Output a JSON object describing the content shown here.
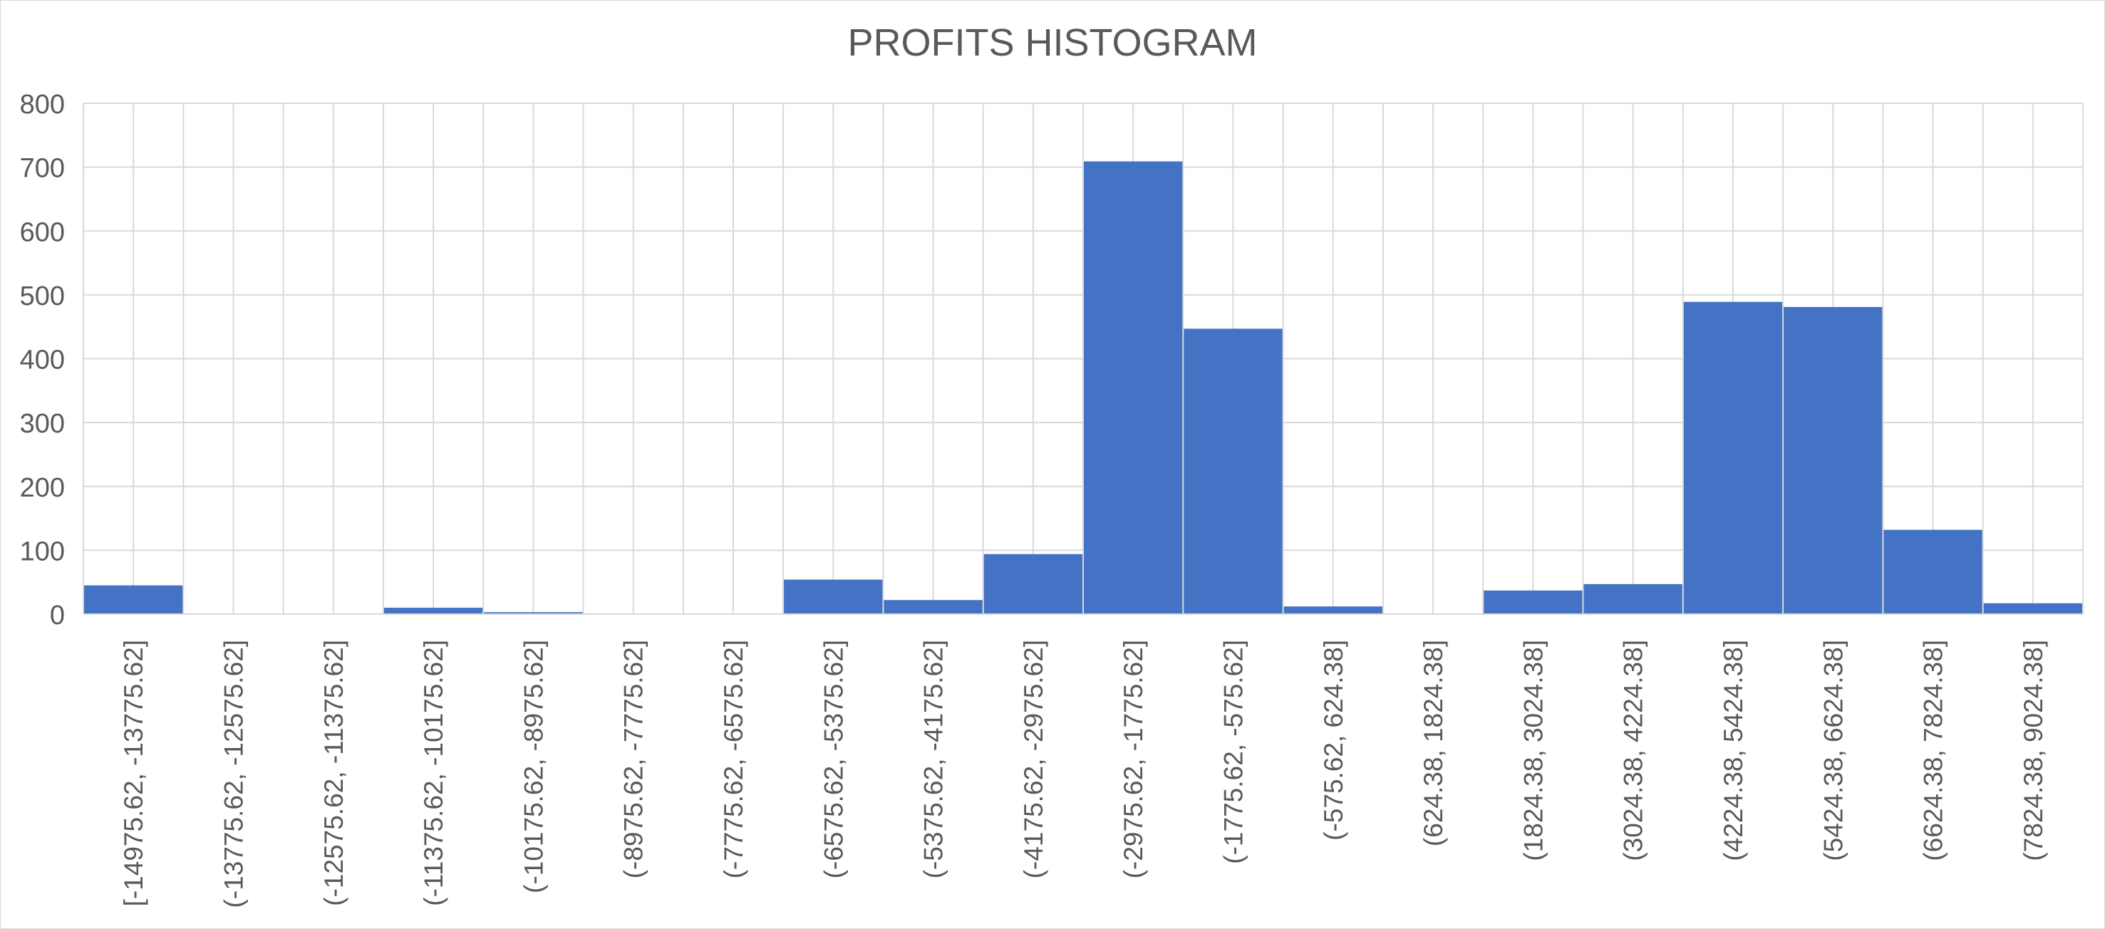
{
  "chart_data": {
    "type": "bar",
    "title": "PROFITS HISTOGRAM",
    "xlabel": "",
    "ylabel": "",
    "ylim": [
      0,
      800
    ],
    "yticks": [
      0,
      100,
      200,
      300,
      400,
      500,
      600,
      700,
      800
    ],
    "grid": true,
    "legend": "none",
    "bar_color": "#4472C4",
    "grid_color": "#D9D9D9",
    "categories": [
      "[-14975.62, -13775.62]",
      "(-13775.62, -12575.62]",
      "(-12575.62, -11375.62]",
      "(-11375.62, -10175.62]",
      "(-10175.62, -8975.62]",
      "(-8975.62, -7775.62]",
      "(-7775.62, -6575.62]",
      "(-6575.62, -5375.62]",
      "(-5375.62, -4175.62]",
      "(-4175.62, -2975.62]",
      "(-2975.62, -1775.62]",
      "(-1775.62, -575.62]",
      "(-575.62, 624.38]",
      "(624.38, 1824.38]",
      "(1824.38, 3024.38]",
      "(3024.38, 4224.38]",
      "(4224.38, 5424.38]",
      "(5424.38, 6624.38]",
      "(6624.38, 7824.38]",
      "(7824.38, 9024.38]"
    ],
    "values": [
      45,
      0,
      0,
      10,
      3,
      0,
      0,
      54,
      22,
      94,
      709,
      447,
      12,
      0,
      37,
      47,
      489,
      481,
      132,
      17
    ]
  }
}
